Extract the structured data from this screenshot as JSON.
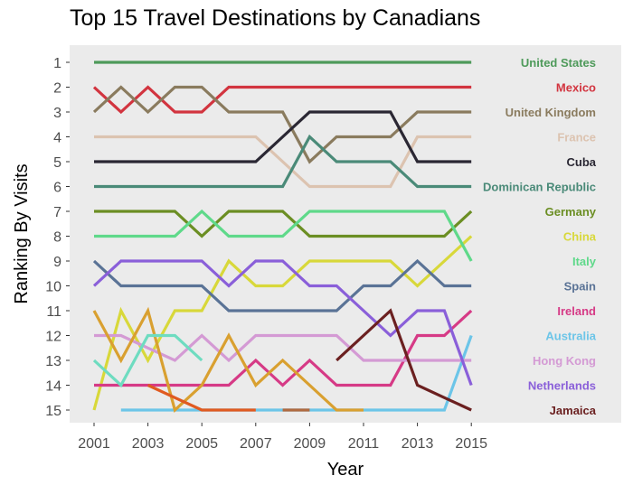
{
  "chart_data": {
    "type": "line",
    "subtype": "bump",
    "title": "Top 15 Travel Destinations by Canadians",
    "xlabel": "Year",
    "ylabel": "Ranking By Visits",
    "x": [
      2001,
      2002,
      2003,
      2004,
      2005,
      2006,
      2007,
      2008,
      2009,
      2010,
      2011,
      2012,
      2013,
      2014,
      2015
    ],
    "x_ticks": [
      2001,
      2003,
      2005,
      2007,
      2009,
      2011,
      2013,
      2015
    ],
    "y_ticks": [
      1,
      2,
      3,
      4,
      5,
      6,
      7,
      8,
      9,
      10,
      11,
      12,
      13,
      14,
      15
    ],
    "ylim": [
      15,
      1
    ],
    "y_reversed": true,
    "grid": false,
    "legend_position": "right (direct labels)",
    "panel_background": "#ebebeb",
    "series": [
      {
        "name": "United States",
        "color": "#4e9a5a",
        "values": [
          1,
          1,
          1,
          1,
          1,
          1,
          1,
          1,
          1,
          1,
          1,
          1,
          1,
          1,
          1
        ]
      },
      {
        "name": "Mexico",
        "color": "#d2343f",
        "values": [
          2,
          3,
          2,
          3,
          3,
          2,
          2,
          2,
          2,
          2,
          2,
          2,
          2,
          2,
          2
        ]
      },
      {
        "name": "United Kingdom",
        "color": "#8a7b5e",
        "values": [
          3,
          2,
          3,
          2,
          2,
          3,
          3,
          3,
          5,
          4,
          4,
          4,
          3,
          3,
          3
        ]
      },
      {
        "name": "France",
        "color": "#dcc3b0",
        "values": [
          4,
          4,
          4,
          4,
          4,
          4,
          4,
          5,
          6,
          6,
          6,
          6,
          4,
          4,
          4
        ]
      },
      {
        "name": "Cuba",
        "color": "#2a2733",
        "values": [
          5,
          5,
          5,
          5,
          5,
          5,
          5,
          4,
          3,
          3,
          3,
          3,
          5,
          5,
          5
        ]
      },
      {
        "name": "Dominican Republic",
        "color": "#4a8a78",
        "values": [
          6,
          6,
          6,
          6,
          6,
          6,
          6,
          6,
          4,
          5,
          5,
          5,
          6,
          6,
          6
        ]
      },
      {
        "name": "Germany",
        "color": "#6b8e23",
        "values": [
          7,
          7,
          7,
          7,
          8,
          7,
          7,
          7,
          8,
          8,
          8,
          8,
          8,
          8,
          7
        ]
      },
      {
        "name": "China",
        "color": "#d8d83a",
        "values": [
          15,
          11,
          13,
          11,
          11,
          9,
          10,
          10,
          9,
          9,
          9,
          9,
          10,
          9,
          8
        ]
      },
      {
        "name": "Italy",
        "color": "#5fd98a",
        "values": [
          8,
          8,
          8,
          8,
          7,
          8,
          8,
          8,
          7,
          7,
          7,
          7,
          7,
          7,
          9
        ]
      },
      {
        "name": "Spain",
        "color": "#5a7396",
        "values": [
          9,
          10,
          10,
          10,
          10,
          11,
          11,
          11,
          11,
          11,
          10,
          10,
          9,
          10,
          10
        ]
      },
      {
        "name": "Ireland",
        "color": "#d63a86",
        "values": [
          14,
          14,
          14,
          14,
          14,
          14,
          13,
          14,
          13,
          14,
          14,
          14,
          12,
          12,
          11
        ]
      },
      {
        "name": "Australia",
        "color": "#6cc5e8",
        "values": [
          null,
          15,
          15,
          15,
          15,
          15,
          15,
          15,
          15,
          15,
          15,
          15,
          15,
          15,
          12
        ]
      },
      {
        "name": "Hong Kong",
        "color": "#d49ad4",
        "values": [
          12,
          12,
          12.5,
          13,
          12,
          13,
          12,
          12,
          12,
          12,
          13,
          13,
          13,
          13,
          13
        ]
      },
      {
        "name": "Netherlands",
        "color": "#8a5fd9",
        "values": [
          10,
          9,
          9,
          9,
          9,
          10,
          9,
          9,
          10,
          10,
          11,
          12,
          11,
          11,
          14
        ]
      },
      {
        "name": "Jamaica",
        "color": "#6b2020",
        "values": [
          null,
          null,
          null,
          null,
          null,
          null,
          null,
          null,
          null,
          13,
          12,
          11,
          14,
          14.5,
          15
        ]
      },
      {
        "name": "(unlabeled gold)",
        "color": "#d9a030",
        "values": [
          11,
          13,
          11,
          15,
          14,
          12,
          14,
          13,
          14,
          15,
          15,
          null,
          null,
          null,
          null
        ]
      },
      {
        "name": "(unlabeled aquamarine)",
        "color": "#6edcc0",
        "values": [
          13,
          14,
          12,
          12,
          13,
          null,
          null,
          null,
          null,
          null,
          null,
          null,
          null,
          null,
          null
        ]
      },
      {
        "name": "(unlabeled orange-red)",
        "color": "#e05a20",
        "values": [
          null,
          null,
          14,
          14.5,
          15,
          15,
          15,
          null,
          null,
          null,
          null,
          null,
          null,
          null,
          null
        ]
      },
      {
        "name": "(unlabeled brown)",
        "color": "#b06a40",
        "values": [
          null,
          null,
          null,
          null,
          null,
          null,
          null,
          15,
          15,
          null,
          null,
          null,
          null,
          null,
          null
        ]
      }
    ],
    "legend": [
      {
        "label": "United States",
        "color": "#4e9a5a"
      },
      {
        "label": "Mexico",
        "color": "#d2343f"
      },
      {
        "label": "United Kingdom",
        "color": "#8a7b5e"
      },
      {
        "label": "France",
        "color": "#dcc3b0"
      },
      {
        "label": "Cuba",
        "color": "#2a2733"
      },
      {
        "label": "Dominican Republic",
        "color": "#4a8a78"
      },
      {
        "label": "Germany",
        "color": "#6b8e23"
      },
      {
        "label": "China",
        "color": "#d8d83a"
      },
      {
        "label": "Italy",
        "color": "#5fd98a"
      },
      {
        "label": "Spain",
        "color": "#5a7396"
      },
      {
        "label": "Ireland",
        "color": "#d63a86"
      },
      {
        "label": "Australia",
        "color": "#6cc5e8"
      },
      {
        "label": "Hong Kong",
        "color": "#d49ad4"
      },
      {
        "label": "Netherlands",
        "color": "#8a5fd9"
      },
      {
        "label": "Jamaica",
        "color": "#6b2020"
      }
    ]
  }
}
